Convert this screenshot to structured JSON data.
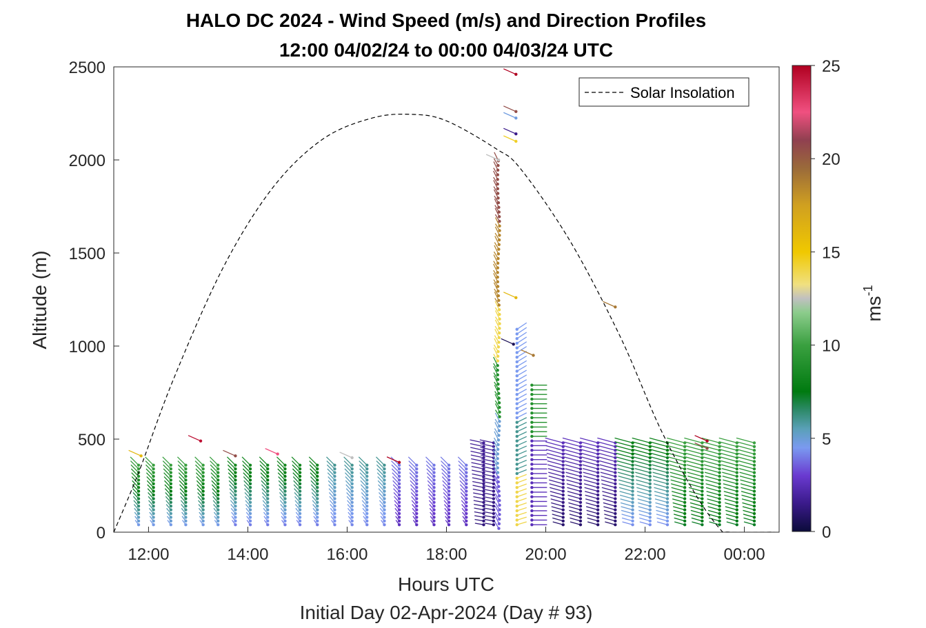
{
  "chart_data": {
    "type": "scatter",
    "title": "HALO DC 2024 - Wind Speed (m/s) and Direction Profiles",
    "subtitle": "12:00 04/02/24 to 00:00 04/03/24  UTC",
    "xlabel": "Hours UTC",
    "ylabel": "Altitude (m)",
    "footer": "Initial Day 02-Apr-2024 (Day # 93)",
    "xlim": [
      11.3,
      24.7
    ],
    "ylim": [
      0,
      2500
    ],
    "x_ticks": [
      {
        "value": 12,
        "label": "12:00"
      },
      {
        "value": 14,
        "label": "14:00"
      },
      {
        "value": 16,
        "label": "16:00"
      },
      {
        "value": 18,
        "label": "18:00"
      },
      {
        "value": 20,
        "label": "20:00"
      },
      {
        "value": 22,
        "label": "22:00"
      },
      {
        "value": 24,
        "label": "00:00"
      }
    ],
    "y_ticks": [
      {
        "value": 0,
        "label": "0"
      },
      {
        "value": 500,
        "label": "500"
      },
      {
        "value": 1000,
        "label": "1000"
      },
      {
        "value": 1500,
        "label": "1500"
      },
      {
        "value": 2000,
        "label": "2000"
      },
      {
        "value": 2500,
        "label": "2500"
      }
    ],
    "colorbar": {
      "label": "ms",
      "label_superscript": "-1",
      "range": [
        0,
        25
      ],
      "ticks": [
        {
          "value": 0,
          "label": "0"
        },
        {
          "value": 5,
          "label": "5"
        },
        {
          "value": 10,
          "label": "10"
        },
        {
          "value": 15,
          "label": "15"
        },
        {
          "value": 20,
          "label": "20"
        },
        {
          "value": 25,
          "label": "25"
        }
      ]
    },
    "legend": {
      "position": "top-right",
      "entries": [
        "Solar Insolation"
      ]
    },
    "solar_insolation": {
      "style": "dashed",
      "points": [
        [
          11.3,
          0
        ],
        [
          11.8,
          320
        ],
        [
          12.5,
          820
        ],
        [
          13.5,
          1420
        ],
        [
          14.5,
          1850
        ],
        [
          15.5,
          2110
        ],
        [
          16.5,
          2225
        ],
        [
          17.3,
          2245
        ],
        [
          18.0,
          2210
        ],
        [
          19.0,
          2060
        ],
        [
          19.5,
          1950
        ],
        [
          20.5,
          1560
        ],
        [
          21.5,
          1050
        ],
        [
          22.3,
          560
        ],
        [
          23.0,
          210
        ],
        [
          23.5,
          20
        ],
        [
          23.7,
          0
        ],
        [
          24.6,
          0
        ]
      ]
    },
    "profile_times": [
      11.8,
      12.1,
      12.45,
      12.75,
      13.1,
      13.4,
      13.75,
      14.05,
      14.4,
      14.75,
      15.05,
      15.4,
      15.75,
      16.1,
      16.4,
      16.75,
      17.05,
      17.4,
      17.75,
      18.05,
      18.4
    ],
    "afternoon_times": [
      20.35,
      20.7,
      21.05,
      21.4,
      21.75,
      22.1,
      22.45,
      22.8,
      23.15,
      23.5,
      23.85,
      24.2
    ],
    "vertical_profile": {
      "x": 19.05,
      "altitude": [
        0,
        2000
      ],
      "speeds": [
        {
          "max_alt": 300,
          "speed": 3.5
        },
        {
          "max_alt": 600,
          "speed": 5
        },
        {
          "max_alt": 900,
          "speed": 9
        },
        {
          "max_alt": 1200,
          "speed": 14
        },
        {
          "max_alt": 1650,
          "speed": 18.5
        },
        {
          "max_alt": 2000,
          "speed": 20.5
        }
      ]
    },
    "outliers": [
      {
        "x": 11.85,
        "y": 410,
        "speed": 16
      },
      {
        "x": 13.05,
        "y": 490,
        "speed": 24.5
      },
      {
        "x": 13.75,
        "y": 410,
        "speed": 20.5
      },
      {
        "x": 14.6,
        "y": 420,
        "speed": 22.5
      },
      {
        "x": 16.1,
        "y": 400,
        "speed": 12.5
      },
      {
        "x": 17.05,
        "y": 375,
        "speed": 25
      },
      {
        "x": 19.4,
        "y": 2460,
        "speed": 25
      },
      {
        "x": 19.4,
        "y": 2260,
        "speed": 20.5
      },
      {
        "x": 19.4,
        "y": 2225,
        "speed": 4.8
      },
      {
        "x": 19.4,
        "y": 2140,
        "speed": 1.5
      },
      {
        "x": 19.4,
        "y": 2100,
        "speed": 14.5
      },
      {
        "x": 19.05,
        "y": 2000,
        "speed": 12.5
      },
      {
        "x": 19.4,
        "y": 1260,
        "speed": 16
      },
      {
        "x": 19.35,
        "y": 1010,
        "speed": 0.5
      },
      {
        "x": 19.75,
        "y": 950,
        "speed": 19
      },
      {
        "x": 21.4,
        "y": 1210,
        "speed": 19
      },
      {
        "x": 23.25,
        "y": 490,
        "speed": 25
      },
      {
        "x": 23.25,
        "y": 450,
        "speed": 20.5
      }
    ]
  }
}
